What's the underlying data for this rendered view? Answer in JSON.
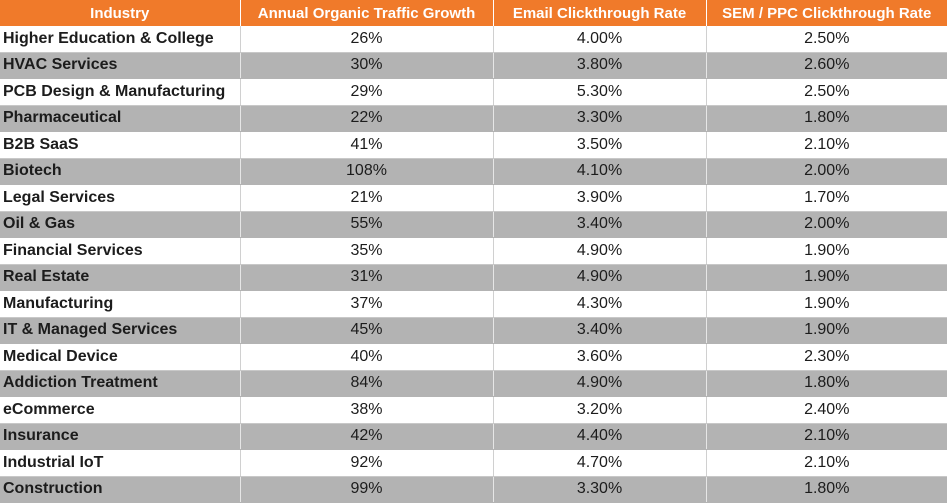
{
  "chart_data": {
    "type": "table",
    "columns": [
      "Industry",
      "Annual Organic Traffic Growth",
      "Email Clickthrough Rate",
      "SEM / PPC Clickthrough Rate"
    ],
    "rows": [
      [
        "Higher Education & College",
        "26%",
        "4.00%",
        "2.50%"
      ],
      [
        "HVAC Services",
        "30%",
        "3.80%",
        "2.60%"
      ],
      [
        "PCB Design & Manufacturing",
        "29%",
        "5.30%",
        "2.50%"
      ],
      [
        "Pharmaceutical",
        "22%",
        "3.30%",
        "1.80%"
      ],
      [
        "B2B SaaS",
        "41%",
        "3.50%",
        "2.10%"
      ],
      [
        "Biotech",
        "108%",
        "4.10%",
        "2.00%"
      ],
      [
        "Legal Services",
        "21%",
        "3.90%",
        "1.70%"
      ],
      [
        "Oil & Gas",
        "55%",
        "3.40%",
        "2.00%"
      ],
      [
        "Financial Services",
        "35%",
        "4.90%",
        "1.90%"
      ],
      [
        "Real Estate",
        "31%",
        "4.90%",
        "1.90%"
      ],
      [
        "Manufacturing",
        "37%",
        "4.30%",
        "1.90%"
      ],
      [
        "IT & Managed Services",
        "45%",
        "3.40%",
        "1.90%"
      ],
      [
        "Medical Device",
        "40%",
        "3.60%",
        "2.30%"
      ],
      [
        "Addiction Treatment",
        "84%",
        "4.90%",
        "1.80%"
      ],
      [
        "eCommerce",
        "38%",
        "3.20%",
        "2.40%"
      ],
      [
        "Insurance",
        "42%",
        "4.40%",
        "2.10%"
      ],
      [
        "Industrial IoT",
        "92%",
        "4.70%",
        "2.10%"
      ],
      [
        "Construction",
        "99%",
        "3.30%",
        "1.80%"
      ]
    ],
    "header_color": "#f07a2a",
    "alt_row_color": "#b3b3b3"
  }
}
